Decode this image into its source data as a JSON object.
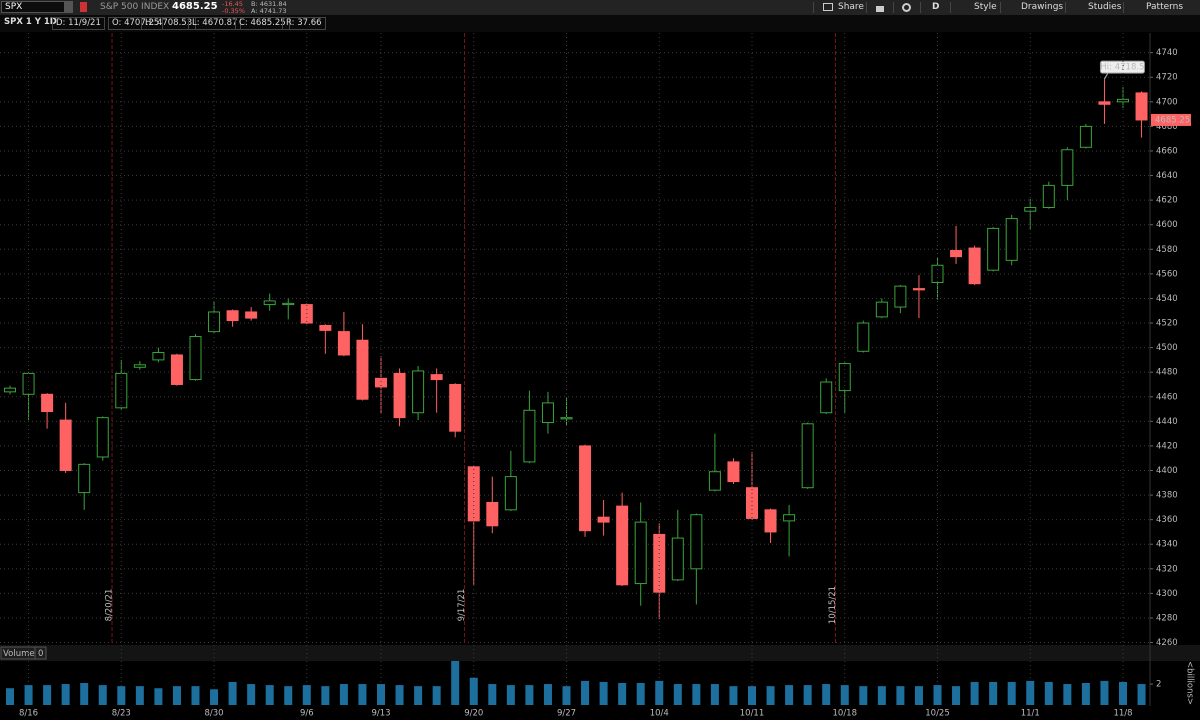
{
  "toolbar": {
    "symbol": "SPX",
    "description": "S&P 500 INDEX",
    "last": "4685.25",
    "net_change": "-16.45",
    "percent_change": "-0.35%",
    "bid": "B: 4631.84",
    "ask": "A: 4741.73",
    "buttons": [
      "Share",
      "D",
      "Style",
      "Drawings",
      "Studies",
      "Patterns"
    ]
  },
  "info_bar": [
    "SPX 1 Y 1D",
    "D: 11/9/21",
    "O: 4707.25",
    "H: 4708.53",
    "L: 4670.87",
    "C: 4685.25",
    "R: 37.66"
  ],
  "chart_data": [
    {
      "type": "candlestick",
      "categories": [
        null,
        "8/16",
        null,
        null,
        null,
        null,
        "8/23",
        null,
        null,
        null,
        null,
        "8/30",
        null,
        null,
        null,
        null,
        "9/6",
        null,
        null,
        null,
        "9/13",
        null,
        null,
        null,
        null,
        "9/20",
        null,
        null,
        null,
        null,
        "9/27",
        null,
        null,
        null,
        null,
        "10/4",
        null,
        null,
        null,
        null,
        "10/11",
        null,
        null,
        null,
        null,
        "10/18",
        null,
        null,
        null,
        null,
        "10/25",
        null,
        null,
        null,
        null,
        "11/1",
        null,
        null,
        null,
        null,
        "11/8",
        null
      ],
      "open": [
        4464,
        4462,
        4462,
        4441,
        4382,
        4411,
        4451,
        4484,
        4490,
        4494,
        4474,
        4513,
        4530,
        4529,
        4535,
        4535,
        4535,
        4518,
        4513,
        4506,
        4475,
        4479,
        4447,
        4478,
        4470,
        4403,
        4374,
        4368,
        4407,
        4439,
        4442,
        4420,
        4362,
        4371,
        4308,
        4348,
        4311,
        4320,
        4384,
        4407,
        4386,
        4368,
        4359,
        4386,
        4447,
        4465,
        4497,
        4525,
        4533,
        4548,
        4553,
        4579,
        4581,
        4563,
        4571,
        4611,
        4614,
        4632,
        4663,
        4700,
        4700,
        4707.25
      ],
      "high": [
        4469,
        4480,
        4463,
        4455,
        4406,
        4444,
        4490,
        4489,
        4500,
        4495,
        4511,
        4538,
        4531,
        4533,
        4544,
        4540,
        4536,
        4519,
        4529,
        4519,
        4493,
        4483,
        4485,
        4483,
        4471,
        4404,
        4395,
        4416,
        4465,
        4464,
        4459,
        4421,
        4376,
        4382,
        4374,
        4357,
        4368,
        4365,
        4430,
        4410,
        4415,
        4369,
        4372,
        4439,
        4475,
        4488,
        4522,
        4540,
        4551,
        4559,
        4573,
        4599,
        4583,
        4598,
        4608,
        4621,
        4635,
        4663,
        4682,
        4718.5,
        4712,
        4708.53
      ],
      "low": [
        4462,
        4441,
        4434,
        4398,
        4368,
        4408,
        4449,
        4482,
        4488,
        4469,
        4473,
        4512,
        4517,
        4522,
        4530,
        4523,
        4519,
        4495,
        4493,
        4457,
        4446,
        4436,
        4441,
        4447,
        4427,
        4307,
        4349,
        4367,
        4406,
        4430,
        4437,
        4346,
        4347,
        4306,
        4290,
        4279,
        4310,
        4291,
        4383,
        4389,
        4360,
        4341,
        4330,
        4385,
        4446,
        4447,
        4496,
        4524,
        4528,
        4524,
        4539,
        4568,
        4551,
        4562,
        4567,
        4596,
        4613,
        4620,
        4662,
        4682,
        4695,
        4670.87
      ],
      "close": [
        4467,
        4479,
        4448,
        4400,
        4405,
        4443,
        4479,
        4486,
        4496,
        4470,
        4509,
        4529,
        4522,
        4524,
        4538,
        4536,
        4520,
        4514,
        4494,
        4458,
        4468,
        4443,
        4481,
        4474,
        4432,
        4359,
        4355,
        4395,
        4449,
        4455,
        4443,
        4351,
        4358,
        4307,
        4358,
        4301,
        4345,
        4364,
        4399,
        4391,
        4361,
        4350,
        4364,
        4438,
        4472,
        4487,
        4520,
        4537,
        4550,
        4547,
        4567,
        4574,
        4552,
        4597,
        4605,
        4614,
        4632,
        4661,
        4680,
        4698,
        4702,
        4685.25
      ],
      "up_color": "#3aa53a",
      "down_color": "#ff6262",
      "ylim": [
        4258,
        4756
      ],
      "yticks": [
        4260,
        4280,
        4300,
        4320,
        4340,
        4360,
        4380,
        4400,
        4420,
        4440,
        4460,
        4480,
        4500,
        4520,
        4540,
        4560,
        4580,
        4600,
        4620,
        4640,
        4660,
        4680,
        4700,
        4720,
        4740
      ],
      "grid": true,
      "annotations": [
        "Hi: 4718.5"
      ],
      "expiration_labels": [
        "8/20/21",
        "9/17/21",
        "10/15/21"
      ]
    },
    {
      "type": "bar",
      "title": "Volume",
      "subtitle": "0",
      "y_label": "<billions>",
      "values": [
        1.6,
        1.9,
        1.9,
        2.0,
        2.1,
        1.9,
        1.8,
        1.8,
        1.6,
        1.8,
        1.8,
        1.5,
        2.2,
        2.0,
        1.9,
        1.8,
        1.9,
        1.8,
        2.0,
        2.0,
        2.0,
        1.9,
        1.8,
        1.8,
        4.2,
        2.6,
        2.0,
        1.9,
        1.9,
        2.0,
        1.8,
        2.3,
        2.2,
        2.1,
        2.1,
        2.3,
        2.0,
        2.0,
        2.0,
        1.8,
        1.8,
        1.8,
        1.9,
        1.9,
        2.0,
        1.9,
        1.8,
        1.8,
        1.8,
        1.8,
        1.9,
        1.8,
        2.2,
        2.2,
        2.2,
        2.3,
        2.2,
        2.0,
        2.1,
        2.3,
        2.2,
        2.0
      ],
      "color": "#1d6f9e",
      "ylim": [
        0,
        4.2
      ],
      "yticks": [
        2
      ]
    }
  ]
}
